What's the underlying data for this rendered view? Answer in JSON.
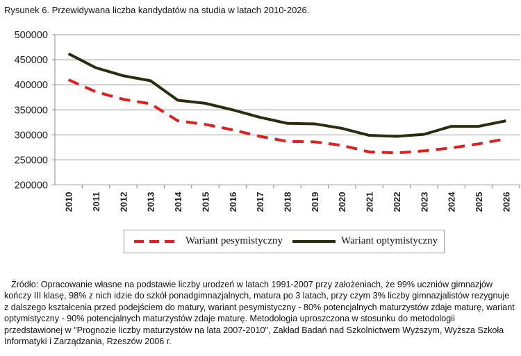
{
  "title": "Rysunek 6. Przewidywana liczba kandydatów na studia w latach 2010-2026.",
  "chart_data": {
    "type": "line",
    "title": "",
    "xlabel": "",
    "ylabel": "",
    "ylim": [
      200000,
      500000
    ],
    "yticks": [
      "500000",
      "450000",
      "400000",
      "350000",
      "300000",
      "250000",
      "200000"
    ],
    "grid": true,
    "legend_position": "bottom",
    "categories": [
      "2010",
      "2011",
      "2012",
      "2013",
      "2014",
      "2015",
      "2016",
      "2017",
      "2018",
      "2019",
      "2020",
      "2021",
      "2022",
      "2023",
      "2024",
      "2025",
      "2026"
    ],
    "series": [
      {
        "name": "Wariant pesymistyczny",
        "color": "#e02020",
        "style": "dashed",
        "values": [
          410000,
          386000,
          371000,
          362000,
          328000,
          321000,
          310000,
          297000,
          287000,
          286000,
          279000,
          266000,
          264000,
          268000,
          274000,
          282000,
          292000
        ]
      },
      {
        "name": "Wariant optymistyczny",
        "color": "#2b2d0e",
        "style": "solid",
        "values": [
          462000,
          434000,
          418000,
          408000,
          369000,
          363000,
          350000,
          335000,
          323000,
          322000,
          313000,
          299000,
          297000,
          301000,
          317000,
          317000,
          328000
        ]
      }
    ]
  },
  "source": "Źródło: Opracowanie własne na podstawie liczby urodzeń w latach 1991-2007 przy założeniach, że 99% uczniów gimnazjów kończy III klasę, 98% z nich idzie do szkół ponadgimnazjalnych, matura po 3 latach, przy czym 3% liczby gimnazjalistów rezygnuje z dalszego kształcenia przed podejściem do matury, wariant pesymistyczny - 80% potencjalnych maturzystów zdaje maturę, wariant optymistyczny - 90% potencjalnych maturzystów zdaje maturę. Metodologia uproszczona w stosunku do metodologii przedstawionej w \"Prognozie liczby maturzystów na lata 2007-2010\", Zakład Badań nad Szkolnictwem Wyższym, Wyższa Szkoła Informatyki i Zarządzania, Rzeszów 2006 r."
}
